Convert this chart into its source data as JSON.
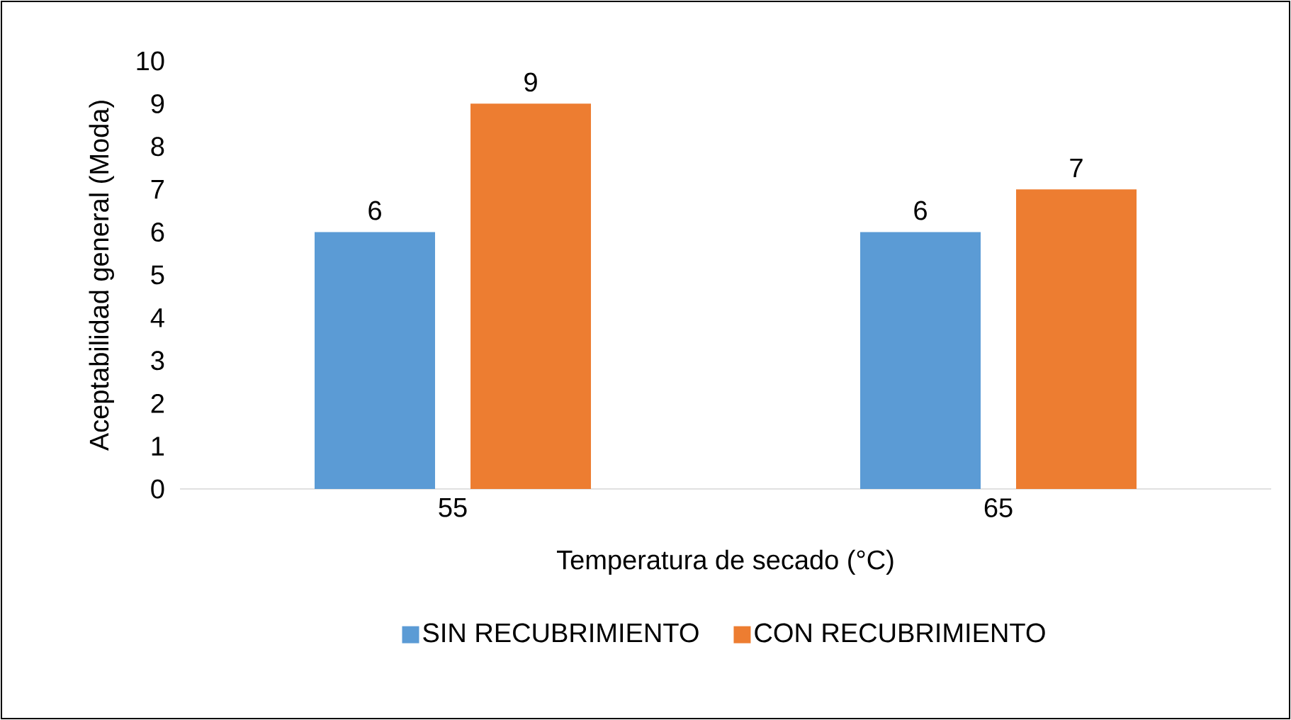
{
  "chart_data": {
    "type": "bar",
    "xlabel": "Temperatura de secado (°C)",
    "ylabel": "Aceptabilidad general (Moda)",
    "categories": [
      "55",
      "65"
    ],
    "series": [
      {
        "name": "SIN RECUBRIMIENTO",
        "color": "#5b9bd5",
        "values": [
          6,
          6
        ]
      },
      {
        "name": "CON RECUBRIMIENTO",
        "color": "#ed7d31",
        "values": [
          9,
          7
        ]
      }
    ],
    "ylim": [
      0,
      10
    ],
    "yticks": [
      0,
      1,
      2,
      3,
      4,
      5,
      6,
      7,
      8,
      9,
      10
    ],
    "data_labels": true,
    "legend": "bottom"
  }
}
